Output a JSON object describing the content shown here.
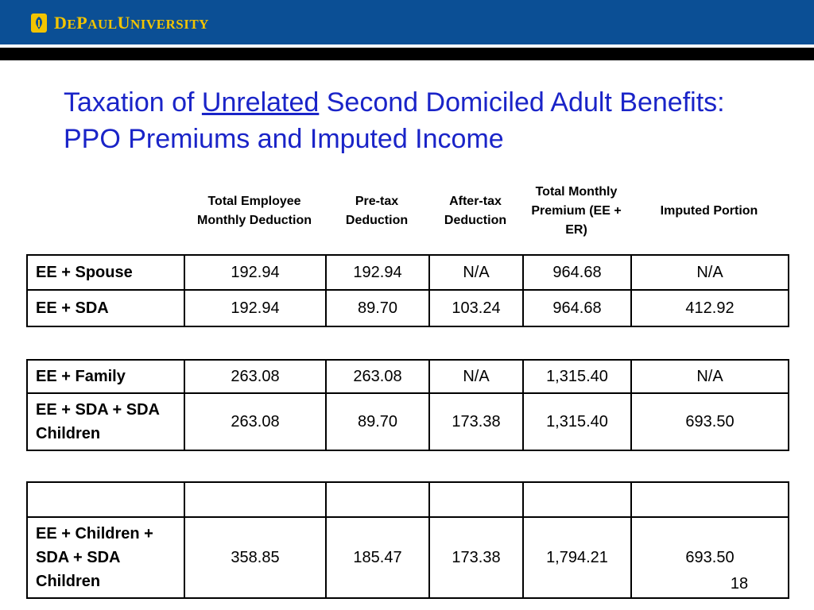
{
  "header": {
    "logo_text_de": "D",
    "logo_text_e": "E",
    "logo_text_p": "P",
    "logo_text_aul": "AUL",
    "logo_text_u": "U",
    "logo_text_niversity": "NIVERSITY",
    "brand_color": "#0b4f95",
    "logo_color": "#f2c400"
  },
  "slide": {
    "title_part1": "Taxation of ",
    "title_underlined": "Unrelated",
    "title_part2": " Second Domiciled Adult Benefits: PPO Premiums and Imputed Income",
    "page_number": "18"
  },
  "columns": [
    "Total Employee Monthly Deduction",
    "Pre-tax Deduction",
    "After-tax Deduction",
    "Total Monthly Premium (EE + ER)",
    "Imputed Portion"
  ],
  "tables": [
    {
      "rows": [
        {
          "label": "EE + Spouse",
          "cells": [
            "192.94",
            "192.94",
            "N/A",
            "964.68",
            "N/A"
          ]
        },
        {
          "label": "EE + SDA",
          "cells": [
            "192.94",
            "89.70",
            "103.24",
            "964.68",
            "412.92"
          ]
        }
      ]
    },
    {
      "rows": [
        {
          "label": "EE + Family",
          "cells": [
            "263.08",
            "263.08",
            "N/A",
            "1,315.40",
            "N/A"
          ]
        },
        {
          "label": "EE + SDA + SDA Children",
          "cells": [
            "263.08",
            "89.70",
            "173.38",
            "1,315.40",
            "693.50"
          ]
        }
      ]
    },
    {
      "rows": [
        {
          "label": "",
          "cells": [
            "",
            "",
            "",
            "",
            ""
          ]
        },
        {
          "label": "EE + Children + SDA + SDA Children",
          "cells": [
            "358.85",
            "185.47",
            "173.38",
            "1,794.21",
            "693.50"
          ]
        }
      ]
    }
  ]
}
